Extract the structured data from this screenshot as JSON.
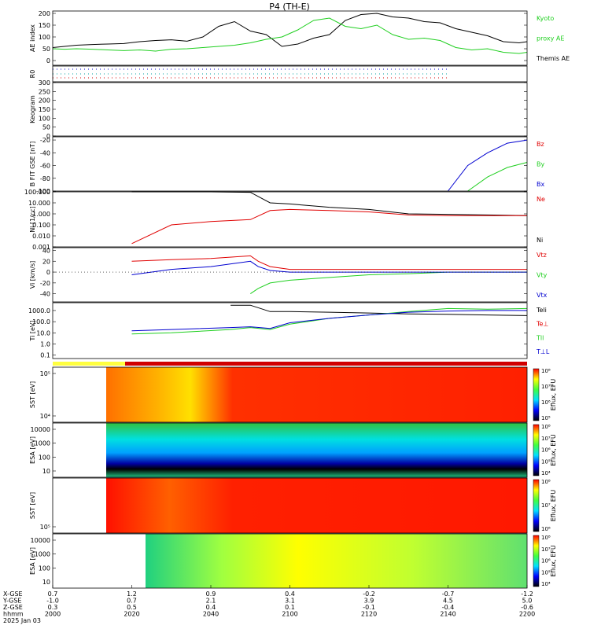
{
  "title": "P4 (TH-E)",
  "colors": {
    "red": "#e00000",
    "green": "#1fcf1f",
    "blue": "#0000d0",
    "black": "#000000"
  },
  "footer": {
    "row_labels": [
      "X-GSE",
      "Y-GSE",
      "Z-GSE",
      "hhmm",
      "2025 Jan 03"
    ],
    "columns": [
      {
        "x": "0.7",
        "y": "-1.0",
        "z": "0.3",
        "t": "2000"
      },
      {
        "x": "1.2",
        "y": "0.7",
        "z": "0.5",
        "t": "2020"
      },
      {
        "x": "0.9",
        "y": "2.1",
        "z": "0.4",
        "t": "2040"
      },
      {
        "x": "0.4",
        "y": "3.1",
        "z": "0.1",
        "t": "2100"
      },
      {
        "x": "-0.2",
        "y": "3.9",
        "z": "-0.1",
        "t": "2120"
      },
      {
        "x": "-0.7",
        "y": "4.5",
        "z": "-0.4",
        "t": "2140"
      },
      {
        "x": "-1.2",
        "y": "5.0",
        "z": "-0.6",
        "t": "2200"
      }
    ]
  },
  "chart_data": [
    {
      "type": "line",
      "ylabel": "AE index",
      "ylim": [
        -20,
        210
      ],
      "ticks": [
        0,
        50,
        100,
        150,
        200
      ],
      "legend": [
        "Kyoto",
        "proxy AE",
        "Themis AE"
      ],
      "x": [
        0,
        3,
        6,
        10,
        14,
        18,
        22,
        26,
        30,
        34,
        38,
        42,
        46,
        50,
        54,
        58,
        62,
        66,
        70,
        74,
        78,
        82,
        86,
        90,
        94,
        98,
        102,
        106,
        110,
        114,
        118,
        120
      ],
      "series": [
        {
          "name": "Themis AE",
          "color": "black",
          "values": [
            55,
            60,
            65,
            68,
            70,
            72,
            80,
            85,
            88,
            82,
            100,
            145,
            165,
            125,
            110,
            60,
            70,
            95,
            110,
            170,
            195,
            200,
            185,
            180,
            165,
            160,
            135,
            120,
            105,
            80,
            75,
            80
          ]
        },
        {
          "name": "Kyoto proxy AE",
          "color": "green",
          "values": [
            50,
            48,
            50,
            48,
            45,
            42,
            45,
            40,
            48,
            50,
            55,
            60,
            65,
            75,
            90,
            100,
            130,
            170,
            180,
            145,
            135,
            150,
            110,
            90,
            95,
            85,
            55,
            45,
            50,
            35,
            30,
            35
          ]
        }
      ]
    },
    {
      "type": "line",
      "ylabel": "R0",
      "ylim": [
        0,
        1
      ],
      "ticks": [],
      "series": []
    },
    {
      "type": "heatmap",
      "ylabel": "Keogram",
      "ylim": [
        0,
        300
      ],
      "ticks": [
        0,
        50,
        100,
        150,
        200,
        250,
        300
      ]
    },
    {
      "type": "line",
      "ylabel": "B FIT GSE [nT]",
      "ylim": [
        -100,
        -15
      ],
      "ticks": [
        -100,
        -80,
        -60,
        -40,
        -20
      ],
      "legend": [
        "Bz",
        "By",
        "Bx"
      ],
      "x": [
        0,
        100,
        105,
        110,
        115,
        120
      ],
      "series": [
        {
          "name": "Bx",
          "color": "blue",
          "values": [
            null,
            -100,
            -60,
            -40,
            -25,
            -20
          ]
        },
        {
          "name": "By",
          "color": "green",
          "values": [
            null,
            null,
            -100,
            -78,
            -63,
            -55
          ]
        }
      ]
    },
    {
      "type": "line",
      "ylabel": "Ni [1/cc]",
      "log": true,
      "ylim": [
        0.001,
        100
      ],
      "ticks": [
        "0.001",
        "0.010",
        "0.100",
        "1.000",
        "10.000",
        "100.000"
      ],
      "legend": [
        "Ne",
        "Ni"
      ],
      "x": [
        20,
        30,
        40,
        50,
        55,
        60,
        70,
        80,
        90,
        100,
        110,
        120
      ],
      "series": [
        {
          "name": "Ni",
          "color": "black",
          "values": [
            100,
            100,
            100,
            90,
            10,
            8,
            4,
            2.5,
            1,
            0.9,
            0.8,
            0.7
          ]
        },
        {
          "name": "Ne",
          "color": "red",
          "values": [
            0.002,
            0.1,
            0.2,
            0.3,
            2,
            2.5,
            2,
            1.5,
            0.8,
            0.7,
            0.7,
            0.7
          ]
        }
      ]
    },
    {
      "type": "line",
      "ylabel": "Vi [km/s]",
      "ylim": [
        -55,
        45
      ],
      "ticks": [
        -40,
        -20,
        0,
        20,
        40
      ],
      "legend": [
        "Vtz",
        "Vty",
        "Vtx"
      ],
      "x": [
        20,
        30,
        40,
        50,
        52,
        55,
        60,
        70,
        80,
        90,
        100,
        110,
        120
      ],
      "series": [
        {
          "name": "Vtz",
          "color": "red",
          "values": [
            20,
            23,
            25,
            30,
            20,
            10,
            5,
            5,
            5,
            5,
            5,
            5,
            5
          ]
        },
        {
          "name": "Vty",
          "color": "green",
          "values": [
            null,
            null,
            null,
            -40,
            -30,
            -20,
            -15,
            -10,
            -5,
            -3,
            0,
            0,
            0
          ]
        },
        {
          "name": "Vtx",
          "color": "blue",
          "values": [
            -5,
            5,
            10,
            20,
            10,
            3,
            0,
            0,
            0,
            0,
            0,
            0,
            0
          ]
        }
      ]
    },
    {
      "type": "line",
      "ylabel": "Ti [eV]",
      "log": true,
      "ylim": [
        0.05,
        5000
      ],
      "ticks": [
        "0.1",
        "1.0",
        "10.0",
        "100.0",
        "1000.0"
      ],
      "legend": [
        "Teli",
        "Te⊥",
        "Tll",
        "T⊥L"
      ],
      "x": [
        20,
        30,
        45,
        50,
        55,
        60,
        70,
        80,
        90,
        100,
        110,
        120
      ],
      "series": [
        {
          "name": "Teli",
          "color": "black",
          "values": [
            null,
            null,
            3000,
            3000,
            800,
            800,
            700,
            600,
            500,
            450,
            400,
            350
          ]
        },
        {
          "name": "Tll",
          "color": "green",
          "values": [
            8,
            10,
            20,
            30,
            20,
            60,
            200,
            400,
            800,
            1500,
            1300,
            1500
          ]
        },
        {
          "name": "T⊥L",
          "color": "blue",
          "values": [
            15,
            20,
            30,
            35,
            25,
            80,
            200,
            400,
            700,
            900,
            1000,
            1000
          ]
        }
      ]
    },
    {
      "type": "heatmap",
      "ylabel": "SST [eV]",
      "yticks": [
        "10⁴",
        "10⁵"
      ],
      "cbar_label": "Eflux, EFU",
      "cbar_ticks": [
        "10⁵",
        "10⁶",
        "10⁷",
        "10⁸"
      ]
    },
    {
      "type": "heatmap",
      "ylabel": "ESA [eV]",
      "yticks": [
        "10",
        "100",
        "1000",
        "10000"
      ],
      "cbar_label": "Eflux, EFU",
      "cbar_ticks": [
        "10⁴",
        "10⁵",
        "10⁶",
        "10⁷",
        "10⁸"
      ]
    },
    {
      "type": "heatmap",
      "ylabel": "SST [eV]",
      "yticks": [
        "10⁵"
      ],
      "cbar_label": "Eflux, EFU",
      "cbar_ticks": [
        "10⁶",
        "10⁷",
        "10⁸"
      ]
    },
    {
      "type": "heatmap",
      "ylabel": "ESA [eV]",
      "yticks": [
        "10",
        "100",
        "1000",
        "10000"
      ],
      "cbar_label": "Eflux, EFU",
      "cbar_ticks": [
        "10⁴",
        "10⁵",
        "10⁶",
        "10⁷",
        "10⁸"
      ]
    }
  ]
}
